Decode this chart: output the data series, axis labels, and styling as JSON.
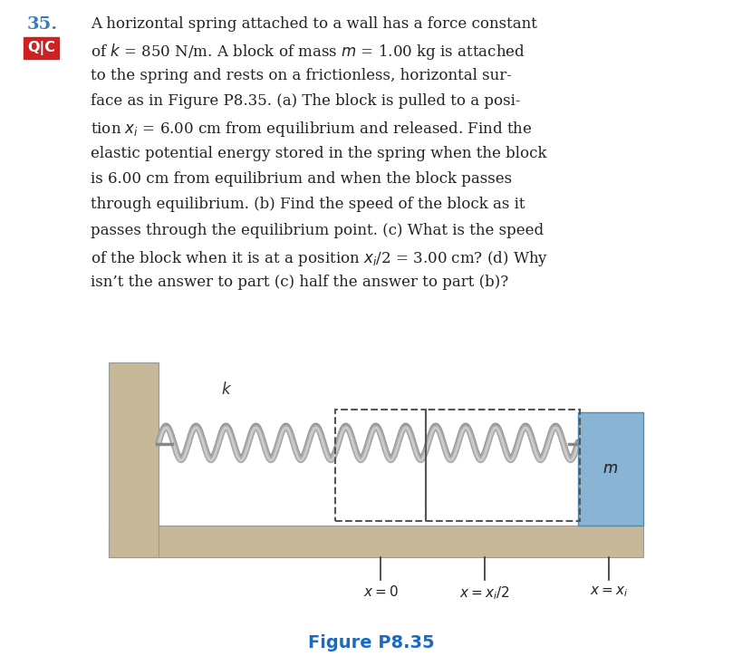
{
  "fig_width": 8.2,
  "fig_height": 7.24,
  "dpi": 100,
  "bg_color": "#ffffff",
  "number_text": "35.",
  "number_color": "#3a7abf",
  "qc_bg": "#cc2222",
  "qc_text": "Q|C",
  "qc_text_color": "#ffffff",
  "figure_label": "Figure P8.35",
  "figure_label_color": "#1a6abf",
  "wall_color": "#c8b89a",
  "floor_color": "#c8b89a",
  "spring_color": "#aaaaaa",
  "spring_shadow_color": "#888888",
  "block_color": "#8ab4d4",
  "block_edge_color": "#5588aa",
  "text_color": "#222222",
  "diagram_text_color": "#333333",
  "dashed_color": "#555555"
}
